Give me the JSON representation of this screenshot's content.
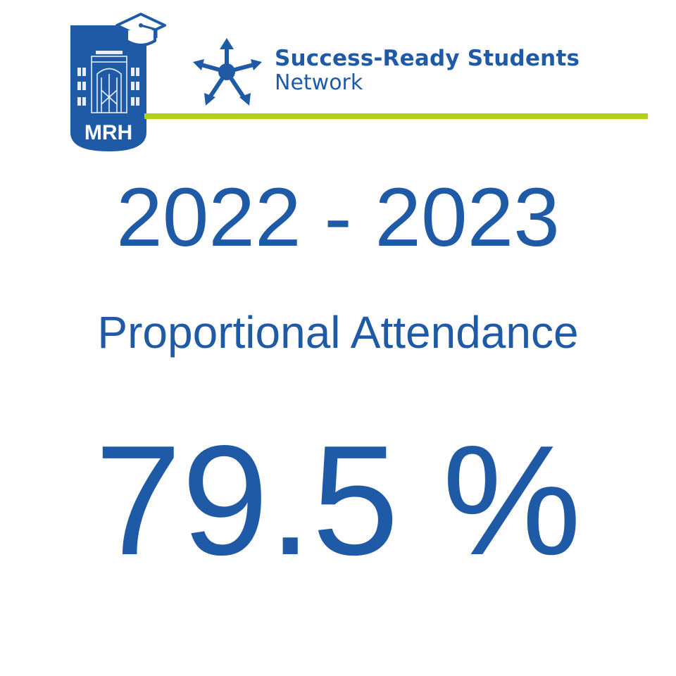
{
  "colors": {
    "primary_blue": "#1f5aa6",
    "accent_green": "#b5cf12",
    "background": "#ffffff"
  },
  "school_logo": {
    "icon": "school-crest-icon",
    "text": "MRH"
  },
  "network_logo": {
    "icon": "network-star-icon",
    "name_line1": "Success-Ready Students",
    "name_line2": "Network"
  },
  "main": {
    "years": "2022 - 2023",
    "metric_label": "Proportional Attendance",
    "metric_value": "79.5 %"
  }
}
